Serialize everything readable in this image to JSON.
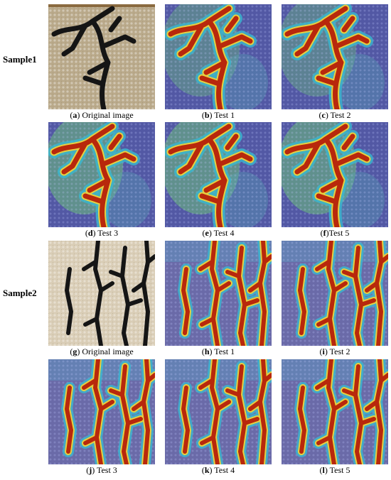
{
  "row_labels": [
    "Sample1",
    "Sample2"
  ],
  "panels": [
    {
      "caption_parts": [
        "(",
        "a",
        ") Original image"
      ]
    },
    {
      "caption_parts": [
        "(",
        "b",
        ") Test 1"
      ]
    },
    {
      "caption_parts": [
        "(",
        "c",
        ") Test 2"
      ]
    },
    {
      "caption_parts": [
        "(",
        "d",
        ") Test 3"
      ]
    },
    {
      "caption_parts": [
        "(",
        "e",
        ") Test 4"
      ]
    },
    {
      "caption_parts": [
        "(",
        "f",
        ")Test 5"
      ]
    },
    {
      "caption_parts": [
        "(",
        "g",
        ") Original image"
      ]
    },
    {
      "caption_parts": [
        "(",
        "h",
        ") Test 1"
      ]
    },
    {
      "caption_parts": [
        "(",
        "i",
        ") Test 2"
      ]
    },
    {
      "caption_parts": [
        "(",
        "j",
        ") Test 3"
      ]
    },
    {
      "caption_parts": [
        "(",
        "k",
        ") Test 4"
      ]
    },
    {
      "caption_parts": [
        "(",
        "l",
        ") Test 5"
      ]
    }
  ]
}
